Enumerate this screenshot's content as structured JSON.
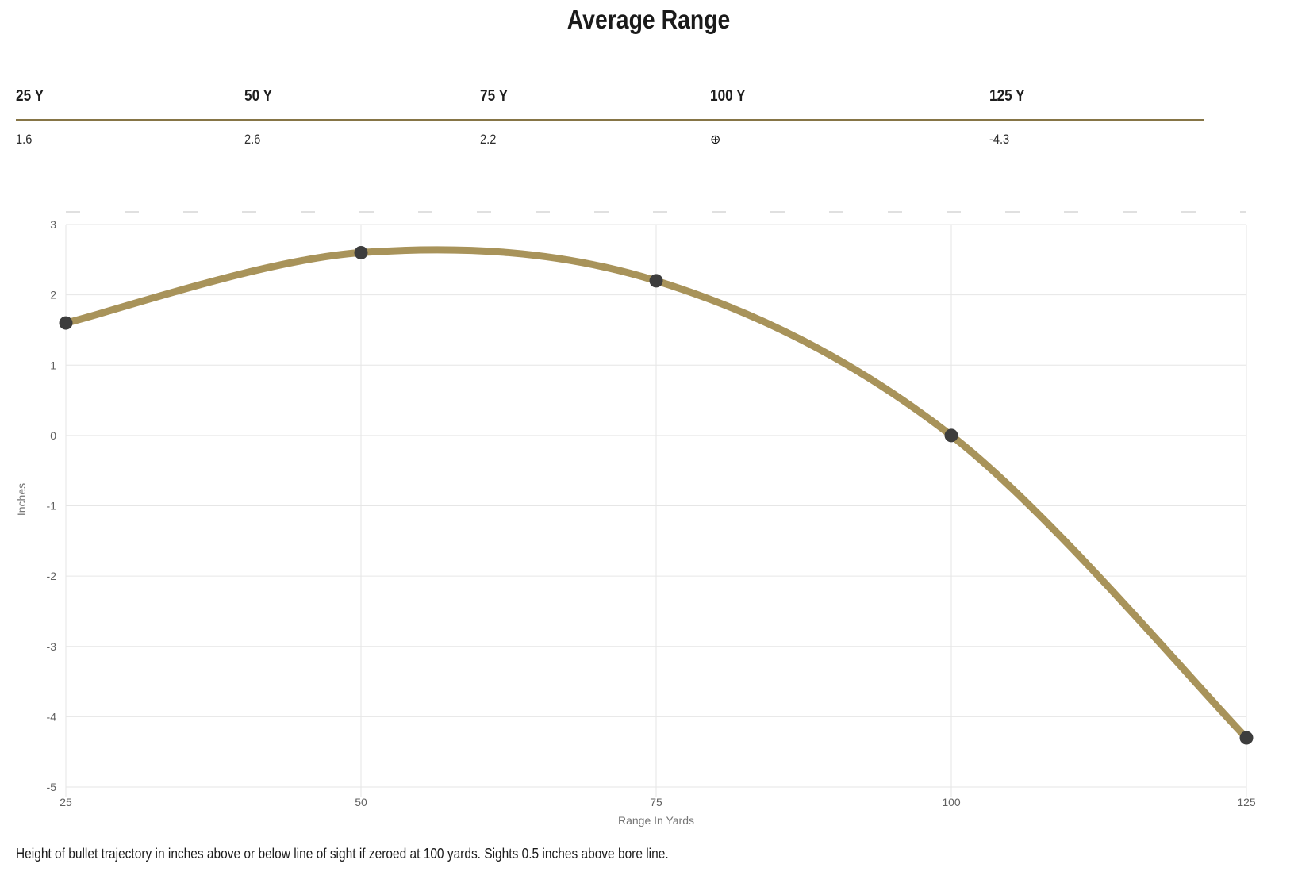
{
  "title": "Average Range",
  "table": {
    "columns": [
      {
        "label": "25 Y",
        "value": "1.6"
      },
      {
        "label": "50 Y",
        "value": "2.6"
      },
      {
        "label": "75 Y",
        "value": "2.2"
      },
      {
        "label": "100 Y",
        "value": "⊕"
      },
      {
        "label": "125 Y",
        "value": "-4.3"
      }
    ]
  },
  "footnote": "Height of bullet trajectory in inches above or below line of sight if zeroed at 100 yards. Sights 0.5 inches above bore line.",
  "colors": {
    "line": "#a8935a",
    "marker": "#3d3d3d",
    "separator": "#867546",
    "grid": "#e6e6e6",
    "top_dash": "#d6d6d6"
  },
  "chart_data": {
    "type": "line",
    "title": "Average Range",
    "x": [
      25,
      50,
      75,
      100,
      125
    ],
    "series": [
      {
        "name": "Average Range",
        "values": [
          1.6,
          2.6,
          2.2,
          0,
          -4.3
        ]
      }
    ],
    "xlabel": "Range In Yards",
    "ylabel": "Inches",
    "xlim": [
      25,
      125
    ],
    "ylim": [
      -5,
      3
    ],
    "x_ticks": [
      "25",
      "50",
      "75",
      "100",
      "125"
    ],
    "y_ticks": [
      "3",
      "2",
      "1",
      "0",
      "-1",
      "-2",
      "-3",
      "-4",
      "-5"
    ],
    "grid": true,
    "legend": false,
    "line_color": "#a8935a",
    "marker_color": "#3d3d3d",
    "zero_note": "zeroed at 100 yards (crosshair symbol in table)"
  }
}
